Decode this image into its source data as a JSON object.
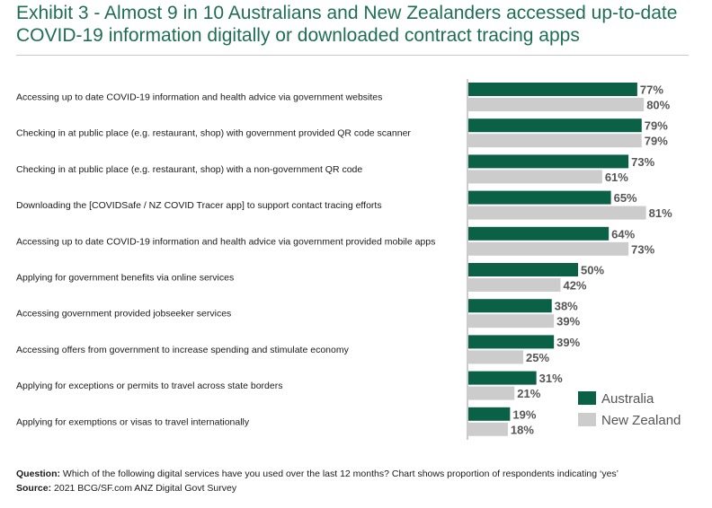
{
  "title": "Exhibit 3 - Almost 9 in 10 Australians and New Zealanders accessed up-to-date COVID-19 information digitally or downloaded contract tracing apps",
  "footer": {
    "question_label": "Question:",
    "question_text": " Which of the following digital services have you used over the last 12 months? Chart shows proportion of respondents indicating ‘yes’",
    "source_label": "Source:",
    "source_text": " 2021 BCG/SF.com ANZ Digital Govt Survey"
  },
  "colors": {
    "title": "#1f6e53",
    "australia": "#0b6146",
    "new_zealand": "#cccccc",
    "value_label": "#555555"
  },
  "chart_data": {
    "type": "bar",
    "orientation": "horizontal",
    "title": "",
    "xlabel": "",
    "ylabel": "",
    "xlim": [
      0,
      100
    ],
    "value_format": "percent",
    "legend_position": "bottom-right",
    "categories": [
      "Accessing up to date COVID-19 information and health advice via government websites",
      "Checking in at public place (e.g. restaurant, shop) with government provided QR code scanner",
      "Checking in at public place (e.g. restaurant, shop) with a non-government QR code",
      "Downloading the [COVIDSafe / NZ COVID Tracer app] to support contact tracing efforts",
      "Accessing up to date COVID-19 information and health advice  via government provided mobile apps",
      "Applying for government benefits via online services",
      "Accessing government provided jobseeker services",
      "Accessing offers from government to increase spending and stimulate economy",
      "Applying for exceptions or permits to travel across state borders",
      "Applying for exemptions or visas to travel internationally"
    ],
    "series": [
      {
        "name": "Australia",
        "color": "#0b6146",
        "values": [
          77,
          79,
          73,
          65,
          64,
          50,
          38,
          39,
          31,
          19
        ]
      },
      {
        "name": "New Zealand",
        "color": "#cccccc",
        "values": [
          80,
          79,
          61,
          81,
          73,
          42,
          39,
          25,
          21,
          18
        ]
      }
    ]
  }
}
